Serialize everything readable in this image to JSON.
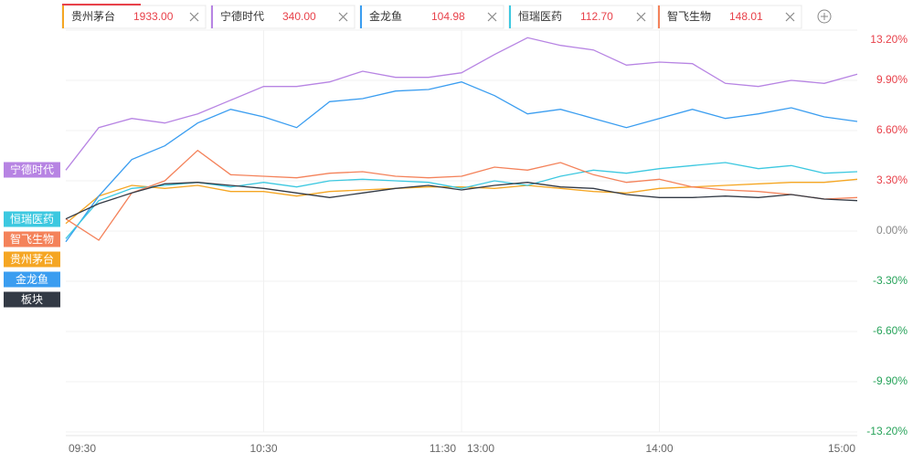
{
  "chart_data": {
    "type": "line",
    "x": [
      "09:30",
      "09:40",
      "09:50",
      "10:00",
      "10:10",
      "10:20",
      "10:30",
      "10:40",
      "10:50",
      "11:00",
      "11:10",
      "11:20",
      "11:30",
      "13:10",
      "13:20",
      "13:30",
      "13:40",
      "13:50",
      "14:00",
      "14:10",
      "14:20",
      "14:30",
      "14:40",
      "14:50",
      "15:00"
    ],
    "xlim": [
      "09:30",
      "15:00"
    ],
    "xticks": [
      "09:30",
      "10:30",
      "11:30",
      "13:00",
      "14:00",
      "15:00"
    ],
    "ylim": [
      -13.2,
      13.2
    ],
    "yticks": [
      {
        "value": 13.2,
        "label": "13.20%"
      },
      {
        "value": 9.9,
        "label": "9.90%"
      },
      {
        "value": 6.6,
        "label": "6.60%"
      },
      {
        "value": 3.3,
        "label": "3.30%"
      },
      {
        "value": 0,
        "label": "0.00%"
      },
      {
        "value": -3.3,
        "label": "-3.30%"
      },
      {
        "value": -6.6,
        "label": "-6.60%"
      },
      {
        "value": -9.9,
        "label": "-9.90%"
      },
      {
        "value": -13.2,
        "label": "-13.20%"
      }
    ],
    "grid": true,
    "series": [
      {
        "name": "贵州茅台",
        "price": "1933.00",
        "color": "#f5a623",
        "values": [
          0.5,
          2.3,
          3.0,
          2.8,
          3.0,
          2.6,
          2.6,
          2.3,
          2.6,
          2.7,
          2.8,
          2.9,
          2.9,
          2.8,
          3.0,
          2.8,
          2.6,
          2.5,
          2.8,
          2.9,
          3.0,
          3.1,
          3.2,
          3.2,
          3.4
        ]
      },
      {
        "name": "宁德时代",
        "price": "340.00",
        "color": "#b784e3",
        "values": [
          4.0,
          6.8,
          7.4,
          7.1,
          7.7,
          8.6,
          9.5,
          9.5,
          9.8,
          10.5,
          10.1,
          10.1,
          10.4,
          11.6,
          12.7,
          12.2,
          11.9,
          10.9,
          11.1,
          11.0,
          9.7,
          9.5,
          9.9,
          9.7,
          10.3
        ]
      },
      {
        "name": "金龙鱼",
        "price": "104.98",
        "color": "#3a9df0",
        "values": [
          -0.7,
          2.3,
          4.7,
          5.6,
          7.1,
          8.0,
          7.5,
          6.8,
          8.5,
          8.7,
          9.2,
          9.3,
          9.8,
          8.9,
          7.7,
          8.0,
          7.4,
          6.8,
          7.4,
          8.0,
          7.4,
          7.7,
          8.1,
          7.5,
          7.2
        ]
      },
      {
        "name": "恒瑞医药",
        "price": "112.70",
        "color": "#3cc8e0",
        "values": [
          -0.5,
          2.0,
          2.8,
          3.0,
          3.2,
          2.9,
          3.2,
          2.9,
          3.3,
          3.4,
          3.3,
          3.2,
          2.8,
          3.3,
          3.0,
          3.6,
          4.0,
          3.8,
          4.1,
          4.3,
          4.5,
          4.1,
          4.3,
          3.8,
          3.9
        ]
      },
      {
        "name": "智飞生物",
        "price": "148.01",
        "color": "#f4825a",
        "values": [
          0.8,
          -0.6,
          2.5,
          3.3,
          5.3,
          3.7,
          3.6,
          3.5,
          3.8,
          3.9,
          3.6,
          3.5,
          3.6,
          4.2,
          4.0,
          4.5,
          3.7,
          3.2,
          3.4,
          2.9,
          2.7,
          2.6,
          2.4,
          2.1,
          2.2
        ]
      },
      {
        "name": "板块",
        "color": "#333a45",
        "values": [
          0.8,
          1.8,
          2.5,
          3.1,
          3.2,
          3.0,
          2.8,
          2.5,
          2.2,
          2.5,
          2.8,
          3.0,
          2.7,
          3.0,
          3.2,
          2.9,
          2.8,
          2.4,
          2.2,
          2.2,
          2.3,
          2.2,
          2.4,
          2.1,
          2.0
        ]
      }
    ]
  }
}
